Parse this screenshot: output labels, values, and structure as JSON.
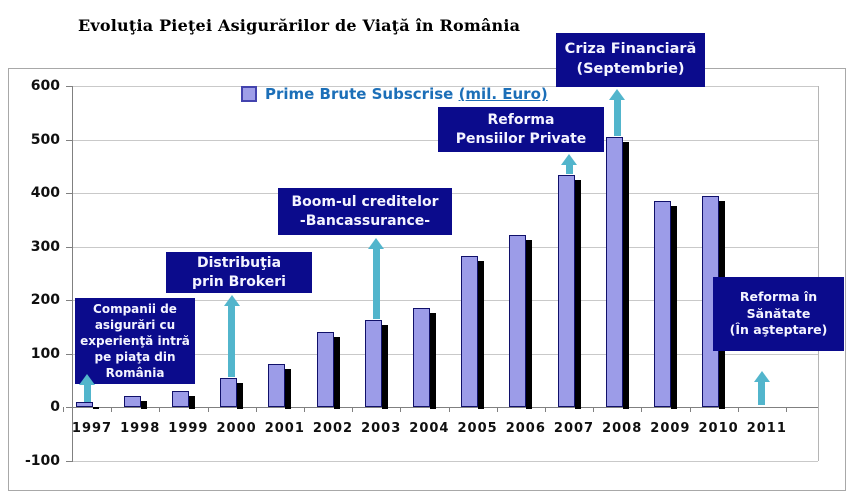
{
  "chart_data": {
    "type": "bar",
    "title": "Evoluţia Pieţei Asigurărilor de Viaţă în România",
    "legend": {
      "series_label": "Prime Brute Subscrise",
      "unit_label": "(mil. Euro)",
      "position": "top-center"
    },
    "categories": [
      "1997",
      "1998",
      "1999",
      "2000",
      "2001",
      "2002",
      "2003",
      "2004",
      "2005",
      "2006",
      "2007",
      "2008",
      "2009",
      "2010",
      "2011"
    ],
    "values": [
      10,
      20,
      30,
      54,
      80,
      140,
      162,
      185,
      283,
      322,
      433,
      505,
      385,
      395,
      0
    ],
    "xlabel": "",
    "ylabel": "",
    "ylim": [
      -100,
      600
    ],
    "yticks": [
      600,
      500,
      400,
      300,
      200,
      100,
      0,
      -100
    ],
    "grid": true,
    "bar_color": "#9c9ce8",
    "bar_border_color": "#10106a",
    "bar_shadow_color": "#000000",
    "gridline_color": "#c9c9c9",
    "axis_color": "#808080",
    "annotation_box_color": "#0b0b8c",
    "annotation_text_color": "#f4f4ff",
    "arrow_color": "#52b5cc",
    "legend_text_color": "#1c6fb8",
    "annotations": [
      {
        "id": "market-entry",
        "lines": [
          "Companii de",
          "asigurări cu",
          "experienţă intră",
          "pe piaţa din",
          "România"
        ],
        "target_year": "1997",
        "box": {
          "x": 75,
          "y": 298,
          "w": 120,
          "h": 86
        },
        "font_px": 12
      },
      {
        "id": "brokers",
        "lines": [
          "Distribuţia",
          "prin Brokeri"
        ],
        "target_year": "2000",
        "box": {
          "x": 166,
          "y": 252,
          "w": 146,
          "h": 41
        },
        "font_px": 14
      },
      {
        "id": "credit-boom",
        "lines": [
          "Boom-ul creditelor",
          "-Bancassurance-"
        ],
        "target_year": "2003",
        "box": {
          "x": 278,
          "y": 188,
          "w": 174,
          "h": 47
        },
        "font_px": 14
      },
      {
        "id": "pension-reform",
        "lines": [
          "Reforma",
          "Pensiilor Private"
        ],
        "target_year": "2007",
        "box": {
          "x": 438,
          "y": 107,
          "w": 166,
          "h": 45
        },
        "font_px": 14
      },
      {
        "id": "financial-crisis",
        "lines": [
          "Criza Financiară",
          "(Septembrie)"
        ],
        "target_year": "2008",
        "box": {
          "x": 556,
          "y": 33,
          "w": 149,
          "h": 54
        },
        "font_px": 14.5
      },
      {
        "id": "health-reform",
        "lines": [
          "Reforma în",
          "Sănătate",
          "(În aşteptare)"
        ],
        "target_year": "2011",
        "box": {
          "x": 713,
          "y": 277,
          "w": 131,
          "h": 74
        },
        "font_px": 12.5
      }
    ],
    "arrows": [
      {
        "year": "1997",
        "y_tip": 374,
        "y_base": 402
      },
      {
        "year": "2000",
        "y_tip": 295,
        "y_base": 377
      },
      {
        "year": "2003",
        "y_tip": 238,
        "y_base": 319
      },
      {
        "year": "2007",
        "y_tip": 154,
        "y_base": 174
      },
      {
        "year": "2008",
        "y_tip": 89,
        "y_base": 136
      },
      {
        "year": "2011",
        "y_tip": 371,
        "y_base": 405
      }
    ]
  }
}
